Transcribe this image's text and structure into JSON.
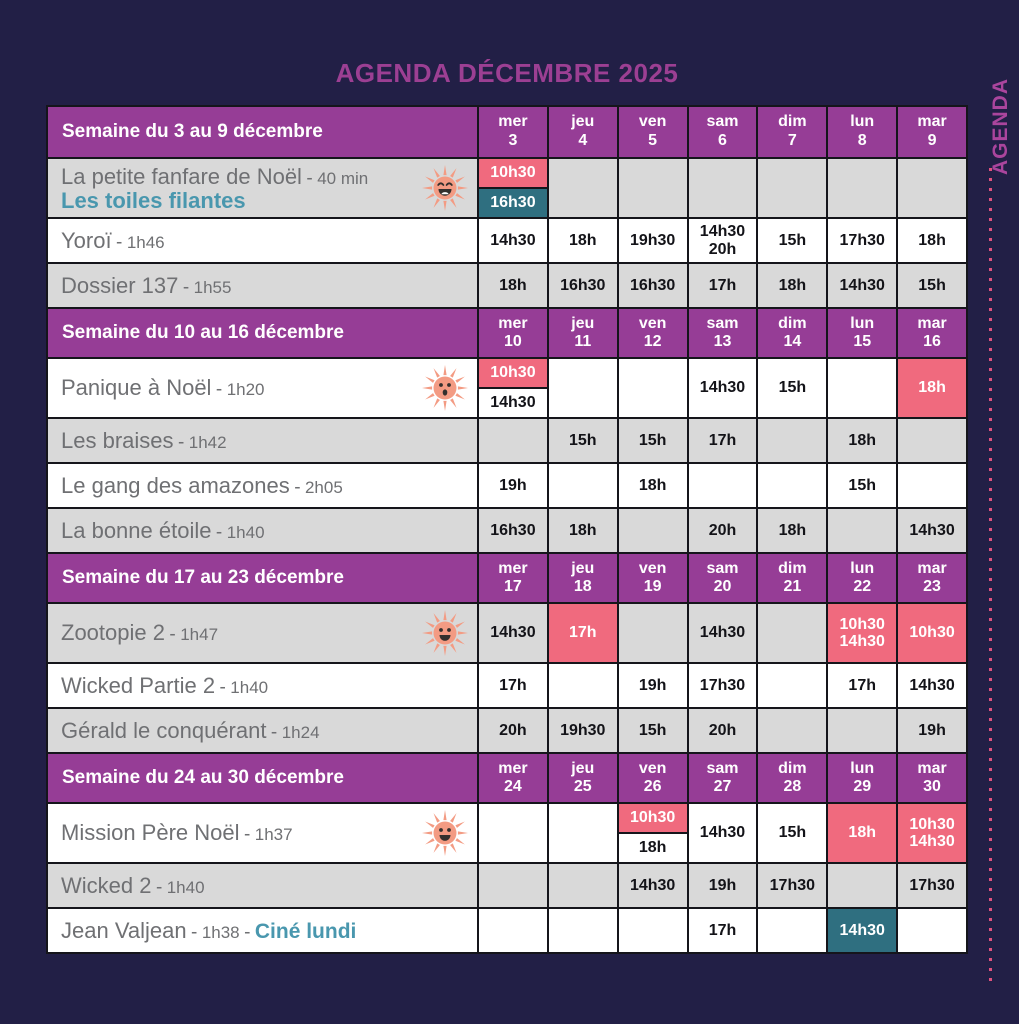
{
  "page": {
    "title": "AGENDA DÉCEMBRE 2025",
    "side_label": "AGENDA"
  },
  "misc": {
    "sep": "-"
  },
  "colors": {
    "background": "#221f46",
    "header_purple": "#963d96",
    "title_magenta": "#9c3f93",
    "side_magenta": "#aa459d",
    "dots_pink": "#e0517e",
    "badge_pink": "#f06a7e",
    "badge_teal": "#2f6f80",
    "teal_text": "#4997ae",
    "shaded_row": "#d9d9d9"
  },
  "weeks": [
    {
      "label": "Semaine du 3 au 9 décembre",
      "days": [
        {
          "name": "mer",
          "num": "3"
        },
        {
          "name": "jeu",
          "num": "4"
        },
        {
          "name": "ven",
          "num": "5"
        },
        {
          "name": "sam",
          "num": "6"
        },
        {
          "name": "dim",
          "num": "7"
        },
        {
          "name": "lun",
          "num": "8"
        },
        {
          "name": "mar",
          "num": "9"
        }
      ],
      "movies": [
        {
          "title": "La petite fanfare de Noël",
          "duration": "40 min",
          "subtitle": "Les toiles filantes",
          "icon": "sun-laughing-icon",
          "shaded": true,
          "cells": [
            {
              "entries": [
                {
                  "text": "10h30",
                  "style": "pink"
                },
                {
                  "text": "16h30",
                  "style": "teal"
                }
              ]
            },
            {},
            {},
            {},
            {},
            {},
            {}
          ]
        },
        {
          "title": "Yoroï",
          "duration": "1h46",
          "shaded": false,
          "cells": [
            {
              "entries": [
                {
                  "text": "14h30"
                }
              ]
            },
            {
              "entries": [
                {
                  "text": "18h"
                }
              ]
            },
            {
              "entries": [
                {
                  "text": "19h30"
                }
              ]
            },
            {
              "entries": [
                {
                  "text": "14h30"
                },
                {
                  "text": "20h"
                }
              ]
            },
            {
              "entries": [
                {
                  "text": "15h"
                }
              ]
            },
            {
              "entries": [
                {
                  "text": "17h30"
                }
              ]
            },
            {
              "entries": [
                {
                  "text": "18h"
                }
              ]
            }
          ]
        },
        {
          "title": "Dossier 137",
          "duration": "1h55",
          "shaded": true,
          "cells": [
            {
              "entries": [
                {
                  "text": "18h"
                }
              ]
            },
            {
              "entries": [
                {
                  "text": "16h30"
                }
              ]
            },
            {
              "entries": [
                {
                  "text": "16h30"
                }
              ]
            },
            {
              "entries": [
                {
                  "text": "17h"
                }
              ]
            },
            {
              "entries": [
                {
                  "text": "18h"
                }
              ]
            },
            {
              "entries": [
                {
                  "text": "14h30"
                }
              ]
            },
            {
              "entries": [
                {
                  "text": "15h"
                }
              ]
            }
          ]
        }
      ]
    },
    {
      "label": "Semaine du 10 au 16 décembre",
      "days": [
        {
          "name": "mer",
          "num": "10"
        },
        {
          "name": "jeu",
          "num": "11"
        },
        {
          "name": "ven",
          "num": "12"
        },
        {
          "name": "sam",
          "num": "13"
        },
        {
          "name": "dim",
          "num": "14"
        },
        {
          "name": "lun",
          "num": "15"
        },
        {
          "name": "mar",
          "num": "16"
        }
      ],
      "movies": [
        {
          "title": "Panique à Noël",
          "duration": "1h20",
          "icon": "sun-surprised-icon",
          "shaded": false,
          "cells": [
            {
              "entries": [
                {
                  "text": "10h30",
                  "style": "pink"
                },
                {
                  "text": "14h30"
                }
              ]
            },
            {},
            {},
            {
              "entries": [
                {
                  "text": "14h30"
                }
              ]
            },
            {
              "entries": [
                {
                  "text": "15h"
                }
              ]
            },
            {},
            {
              "fill": "pink",
              "entries": [
                {
                  "text": "18h"
                }
              ]
            }
          ]
        },
        {
          "title": "Les braises",
          "duration": "1h42",
          "shaded": true,
          "cells": [
            {},
            {
              "entries": [
                {
                  "text": "15h"
                }
              ]
            },
            {
              "entries": [
                {
                  "text": "15h"
                }
              ]
            },
            {
              "entries": [
                {
                  "text": "17h"
                }
              ]
            },
            {},
            {
              "entries": [
                {
                  "text": "18h"
                }
              ]
            },
            {}
          ]
        },
        {
          "title": "Le gang des amazones",
          "duration": "2h05",
          "shaded": false,
          "cells": [
            {
              "entries": [
                {
                  "text": "19h"
                }
              ]
            },
            {},
            {
              "entries": [
                {
                  "text": "18h"
                }
              ]
            },
            {},
            {},
            {
              "entries": [
                {
                  "text": "15h"
                }
              ]
            },
            {}
          ]
        },
        {
          "title": "La bonne étoile",
          "duration": "1h40",
          "shaded": true,
          "cells": [
            {
              "entries": [
                {
                  "text": "16h30"
                }
              ]
            },
            {
              "entries": [
                {
                  "text": "18h"
                }
              ]
            },
            {},
            {
              "entries": [
                {
                  "text": "20h"
                }
              ]
            },
            {
              "entries": [
                {
                  "text": "18h"
                }
              ]
            },
            {},
            {
              "entries": [
                {
                  "text": "14h30"
                }
              ]
            }
          ]
        }
      ]
    },
    {
      "label": "Semaine du 17 au 23 décembre",
      "days": [
        {
          "name": "mer",
          "num": "17"
        },
        {
          "name": "jeu",
          "num": "18"
        },
        {
          "name": "ven",
          "num": "19"
        },
        {
          "name": "sam",
          "num": "20"
        },
        {
          "name": "dim",
          "num": "21"
        },
        {
          "name": "lun",
          "num": "22"
        },
        {
          "name": "mar",
          "num": "23"
        }
      ],
      "movies": [
        {
          "title": "Zootopie 2",
          "duration": "1h47",
          "icon": "sun-happy-icon",
          "shaded": true,
          "cells": [
            {
              "entries": [
                {
                  "text": "14h30"
                }
              ]
            },
            {
              "fill": "pink",
              "entries": [
                {
                  "text": "17h"
                }
              ]
            },
            {},
            {
              "entries": [
                {
                  "text": "14h30"
                }
              ]
            },
            {},
            {
              "fill": "pink",
              "entries": [
                {
                  "text": "10h30"
                },
                {
                  "text": "14h30"
                }
              ]
            },
            {
              "fill": "pink",
              "entries": [
                {
                  "text": "10h30"
                }
              ]
            }
          ]
        },
        {
          "title": "Wicked Partie 2",
          "duration": "1h40",
          "shaded": false,
          "cells": [
            {
              "entries": [
                {
                  "text": "17h"
                }
              ]
            },
            {},
            {
              "entries": [
                {
                  "text": "19h"
                }
              ]
            },
            {
              "entries": [
                {
                  "text": "17h30"
                }
              ]
            },
            {},
            {
              "entries": [
                {
                  "text": "17h"
                }
              ]
            },
            {
              "entries": [
                {
                  "text": "14h30"
                }
              ]
            }
          ]
        },
        {
          "title": "Gérald le conquérant",
          "duration": "1h24",
          "shaded": true,
          "cells": [
            {
              "entries": [
                {
                  "text": "20h"
                }
              ]
            },
            {
              "entries": [
                {
                  "text": "19h30"
                }
              ]
            },
            {
              "entries": [
                {
                  "text": "15h"
                }
              ]
            },
            {
              "entries": [
                {
                  "text": "20h"
                }
              ]
            },
            {},
            {},
            {
              "entries": [
                {
                  "text": "19h"
                }
              ]
            }
          ]
        }
      ]
    },
    {
      "label": "Semaine du 24 au 30 décembre",
      "days": [
        {
          "name": "mer",
          "num": "24"
        },
        {
          "name": "jeu",
          "num": "25"
        },
        {
          "name": "ven",
          "num": "26"
        },
        {
          "name": "sam",
          "num": "27"
        },
        {
          "name": "dim",
          "num": "28"
        },
        {
          "name": "lun",
          "num": "29"
        },
        {
          "name": "mar",
          "num": "30"
        }
      ],
      "movies": [
        {
          "title": "Mission Père Noël",
          "duration": "1h37",
          "icon": "sun-smiling-icon",
          "shaded": false,
          "cells": [
            {},
            {},
            {
              "entries": [
                {
                  "text": "10h30",
                  "style": "pink"
                },
                {
                  "text": "18h"
                }
              ]
            },
            {
              "entries": [
                {
                  "text": "14h30"
                }
              ]
            },
            {
              "entries": [
                {
                  "text": "15h"
                }
              ]
            },
            {
              "fill": "pink",
              "entries": [
                {
                  "text": "18h"
                }
              ]
            },
            {
              "fill": "pink",
              "entries": [
                {
                  "text": "10h30"
                },
                {
                  "text": "14h30"
                }
              ]
            }
          ]
        },
        {
          "title": "Wicked 2",
          "duration": "1h40",
          "shaded": true,
          "cells": [
            {},
            {},
            {
              "entries": [
                {
                  "text": "14h30"
                }
              ]
            },
            {
              "entries": [
                {
                  "text": "19h"
                }
              ]
            },
            {
              "entries": [
                {
                  "text": "17h30"
                }
              ]
            },
            {},
            {
              "entries": [
                {
                  "text": "17h30"
                }
              ]
            }
          ]
        },
        {
          "title": "Jean Valjean",
          "duration": "1h38",
          "extra": "Ciné lundi",
          "shaded": false,
          "cells": [
            {},
            {},
            {},
            {
              "entries": [
                {
                  "text": "17h"
                }
              ]
            },
            {},
            {
              "fill": "teal",
              "entries": [
                {
                  "text": "14h30"
                }
              ]
            },
            {}
          ]
        }
      ]
    }
  ]
}
